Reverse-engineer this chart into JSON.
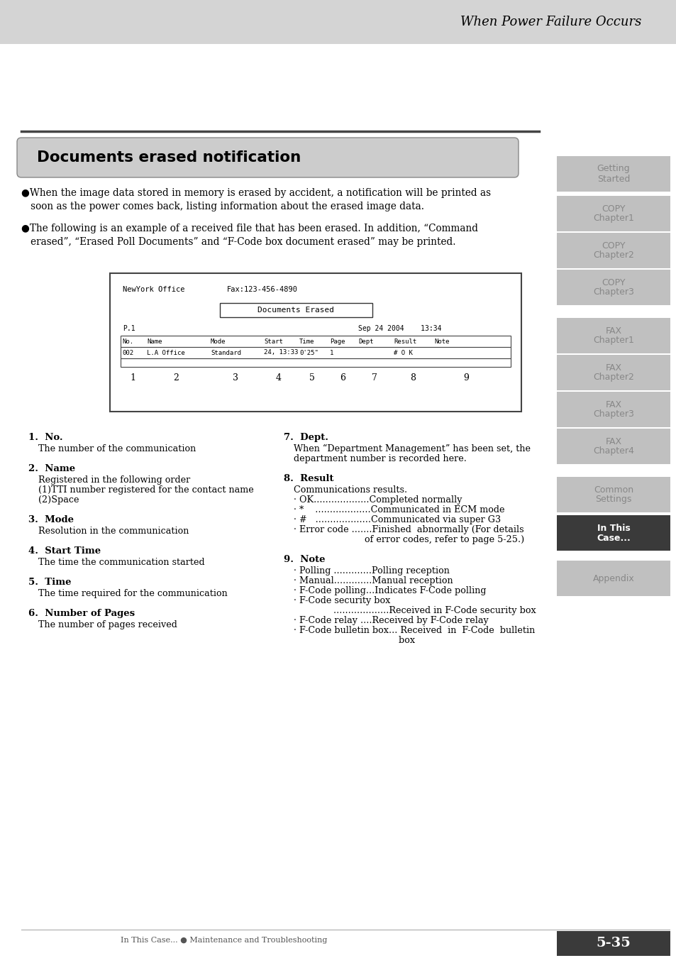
{
  "page_title": "When Power Failure Occurs",
  "section_title": "Documents erased notification",
  "bullet1": "●When the image data stored in memory is erased by accident, a notification will be printed as\n   soon as the power comes back, listing information about the erased image data.",
  "bullet2": "●The following is an example of a received file that has been erased. In addition, “Command\n   erased”, “Erased Poll Documents” and “F-Code box document erased” may be printed.",
  "fax_sender": "NewYork Office",
  "fax_number": "Fax:123-456-4890",
  "fax_title": "Documents Erased",
  "fax_p": "P.1",
  "fax_date": "Sep 24 2004    13:34",
  "fax_headers": [
    "No.",
    "Name",
    "Mode",
    "Start",
    "Time",
    "Page",
    "Dept",
    "Result",
    "Note"
  ],
  "fax_row": [
    "002",
    "L.A Office",
    "Standard",
    "24, 13:33",
    "0'25\"",
    "1",
    "",
    "# O K",
    ""
  ],
  "fax_col_nums": [
    "1",
    "2",
    "3",
    "4",
    "5",
    "6",
    "7",
    "8",
    "9"
  ],
  "items_left": [
    {
      "num": "1.",
      "title": "No.",
      "desc": "The number of the communication"
    },
    {
      "num": "2.",
      "title": "Name",
      "desc": "Registered in the following order\n(1)TTI number registered for the contact name\n(2)Space"
    },
    {
      "num": "3.",
      "title": "Mode",
      "desc": "Resolution in the communication"
    },
    {
      "num": "4.",
      "title": "Start Time",
      "desc": "The time the communication started"
    },
    {
      "num": "5.",
      "title": "Time",
      "desc": "The time required for the communication"
    },
    {
      "num": "6.",
      "title": "Number of Pages",
      "desc": "The number of pages received"
    }
  ],
  "items_right": [
    {
      "num": "7.",
      "title": "Dept.",
      "desc": "When “Department Management” has been set, the\ndepartment number is recorded here."
    },
    {
      "num": "8.",
      "title": "Result",
      "desc": "Communications results.\n· OK...................Completed normally\n· *    ...................Communicated in ECM mode\n· #   ...................Communicated via super G3\n· Error code .......Finished  abnormally (For details\n                         of error codes, refer to page 5-25.)"
    },
    {
      "num": "9.",
      "title": "Note",
      "desc": "· Polling .............Polling reception\n· Manual.............Manual reception\n· F-Code polling...Indicates F-Code polling\n· F-Code security box\n              ...................Received in F-Code security box\n· F-Code relay ....Received by F-Code relay\n· F-Code bulletin box... Received  in  F-Code  bulletin\n                                     box"
    }
  ],
  "right_tabs": [
    {
      "label": "Getting\nStarted",
      "active": false
    },
    {
      "label": "COPY\nChapter1",
      "active": false
    },
    {
      "label": "COPY\nChapter2",
      "active": false
    },
    {
      "label": "COPY\nChapter3",
      "active": false
    },
    {
      "label": "FAX\nChapter1",
      "active": false
    },
    {
      "label": "FAX\nChapter2",
      "active": false
    },
    {
      "label": "FAX\nChapter3",
      "active": false
    },
    {
      "label": "FAX\nChapter4",
      "active": false
    },
    {
      "label": "Common\nSettings",
      "active": false
    },
    {
      "label": "In This\nCase...",
      "active": true
    },
    {
      "label": "Appendix",
      "active": false
    }
  ],
  "footer_left": "In This Case... ● Maintenance and Troubleshooting",
  "footer_right": "5-35",
  "bg_color": "#ffffff",
  "header_bg": "#d4d4d4",
  "tab_active_color": "#3a3a3a",
  "tab_inactive_color": "#c0c0c0",
  "tab_active_text": "#ffffff",
  "tab_inactive_text": "#888888",
  "section_bg": "#cccccc"
}
